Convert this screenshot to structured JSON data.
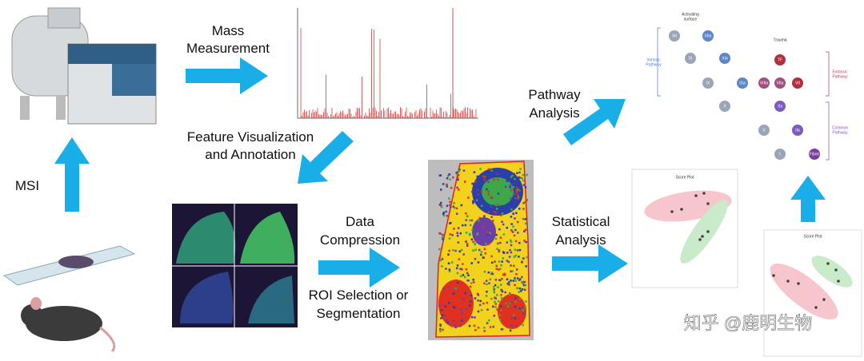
{
  "labels": {
    "mass_measurement": [
      "Mass",
      "Measurement"
    ],
    "feature_visualization": [
      "Feature Visualization",
      "and Annotation"
    ],
    "msi": "MSI",
    "data_compression": [
      "Data",
      "Compression"
    ],
    "roi_selection": [
      "ROI Selection or",
      "Segmentation"
    ],
    "statistical_analysis": [
      "Statistical",
      "Analysis"
    ],
    "pathway_analysis": [
      "Pathway",
      "Analysis"
    ]
  },
  "pathway": {
    "activating": [
      "Activating",
      "surface"
    ],
    "trauma": "Trauma",
    "intrinsic": [
      "Intrinsic",
      "Pathway"
    ],
    "extrinsic": [
      "Extrinsic",
      "Pathway"
    ],
    "common": [
      "Common",
      "Pathway"
    ],
    "nodes": [
      "XII",
      "XIIa",
      "XI",
      "XIa",
      "IX",
      "IXa",
      "VIIIa",
      "TF",
      "VIIa",
      "VII",
      "X",
      "Xa",
      "V",
      "IIa",
      "I",
      "Fibrin"
    ]
  },
  "score_plots": [
    "Score Plot",
    "Score Plot"
  ],
  "watermark": "知乎 @鹿明生物"
}
